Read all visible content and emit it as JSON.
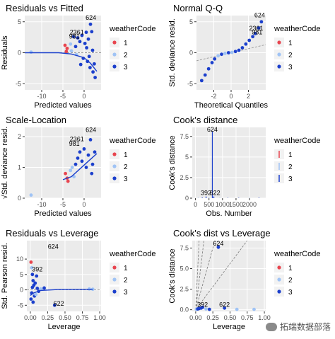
{
  "colors": {
    "1": "#E8454F",
    "2": "#9FC3F5",
    "3": "#1B3FCC",
    "panel": "#EBEBEB",
    "grid": "#FFFFFF",
    "smooth": "#1B3FCC"
  },
  "legend_title": "weatherCode",
  "legend_levels": [
    "1",
    "2",
    "3"
  ],
  "watermark": "拓端数据部落",
  "chart_data": [
    {
      "type": "scatter",
      "title": "Residuals vs Fitted",
      "xlabel": "Predicted values",
      "ylabel": "Residuals",
      "xlim": [
        -14,
        4
      ],
      "ylim": [
        -6,
        6
      ],
      "xticks": [
        -10,
        -5,
        0
      ],
      "yticks": [
        -5,
        0,
        5
      ],
      "refline": {
        "type": "h",
        "value": 0
      },
      "labels": [
        {
          "text": "624",
          "x": 1.6,
          "y": 5.3
        },
        {
          "text": "2361",
          "x": -1.7,
          "y": 3.0
        },
        {
          "text": "981",
          "x": -2.3,
          "y": 2.3
        }
      ],
      "points": [
        {
          "x": -12.5,
          "y": 0.1,
          "g": "2"
        },
        {
          "x": -4.5,
          "y": 1.2,
          "g": "1"
        },
        {
          "x": -4.0,
          "y": 0.7,
          "g": "1"
        },
        {
          "x": -3.2,
          "y": 1.4,
          "g": "2"
        },
        {
          "x": -2.5,
          "y": 2.6,
          "g": "3"
        },
        {
          "x": -1.5,
          "y": 2.4,
          "g": "3"
        },
        {
          "x": -1.0,
          "y": 1.8,
          "g": "3"
        },
        {
          "x": -0.5,
          "y": 2.8,
          "g": "3"
        },
        {
          "x": 0.2,
          "y": 1.5,
          "g": "3"
        },
        {
          "x": 0.6,
          "y": 0.8,
          "g": "3"
        },
        {
          "x": 1.0,
          "y": 2.2,
          "g": "3"
        },
        {
          "x": 1.5,
          "y": 4.6,
          "g": "3"
        },
        {
          "x": 2.0,
          "y": 0.4,
          "g": "3"
        },
        {
          "x": -0.2,
          "y": -0.9,
          "g": "3"
        },
        {
          "x": 0.8,
          "y": -1.4,
          "g": "3"
        },
        {
          "x": 1.4,
          "y": -2.4,
          "g": "3"
        },
        {
          "x": 2.1,
          "y": -3.1,
          "g": "3"
        },
        {
          "x": 2.6,
          "y": -4.0,
          "g": "3"
        },
        {
          "x": -1.8,
          "y": -0.3,
          "g": "2"
        },
        {
          "x": -3.0,
          "y": 0.3,
          "g": "2"
        },
        {
          "x": 1.8,
          "y": 3.4,
          "g": "3"
        },
        {
          "x": -2.0,
          "y": 1.0,
          "g": "3"
        },
        {
          "x": 0.5,
          "y": 3.3,
          "g": "3"
        },
        {
          "x": 1.2,
          "y": -0.6,
          "g": "3"
        },
        {
          "x": 2.4,
          "y": -1.8,
          "g": "3"
        },
        {
          "x": -4.2,
          "y": 0.2,
          "g": "1"
        },
        {
          "x": -0.8,
          "y": -1.9,
          "g": "3"
        }
      ],
      "smooth": [
        {
          "x": -14,
          "y": 0
        },
        {
          "x": -6,
          "y": 0
        },
        {
          "x": -3,
          "y": -0.2
        },
        {
          "x": 0,
          "y": -0.8
        },
        {
          "x": 1.5,
          "y": -1.7
        },
        {
          "x": 3,
          "y": -3.0
        }
      ]
    },
    {
      "type": "scatter",
      "title": "Normal Q-Q",
      "xlabel": "Theoretical Quantiles",
      "ylabel": "Std. deviance resid.",
      "xlim": [
        -4,
        4
      ],
      "ylim": [
        -6,
        6
      ],
      "xticks": [
        -2,
        0,
        2
      ],
      "yticks": [
        -5,
        0,
        5
      ],
      "refline": {
        "type": "line",
        "x1": -4,
        "y1": -1.3,
        "x2": 4,
        "y2": 1.3
      },
      "labels": [
        {
          "text": "624",
          "x": 3.3,
          "y": 5.7
        },
        {
          "text": "2361",
          "x": 2.9,
          "y": 3.6
        },
        {
          "text": "981",
          "x": 3.0,
          "y": 3.0
        }
      ],
      "points": [
        {
          "x": -3.4,
          "y": -4.5,
          "g": "3"
        },
        {
          "x": -3.0,
          "y": -3.6,
          "g": "3"
        },
        {
          "x": -2.6,
          "y": -2.6,
          "g": "3"
        },
        {
          "x": -2.2,
          "y": -1.6,
          "g": "3"
        },
        {
          "x": -1.9,
          "y": -1.0,
          "g": "3"
        },
        {
          "x": -1.5,
          "y": -0.5,
          "g": "2"
        },
        {
          "x": -1.1,
          "y": -0.25,
          "g": "3"
        },
        {
          "x": -0.7,
          "y": -0.1,
          "g": "2"
        },
        {
          "x": -0.3,
          "y": 0.0,
          "g": "3"
        },
        {
          "x": 0.1,
          "y": 0.05,
          "g": "2"
        },
        {
          "x": 0.5,
          "y": 0.2,
          "g": "3"
        },
        {
          "x": 0.9,
          "y": 0.4,
          "g": "3"
        },
        {
          "x": 1.3,
          "y": 0.8,
          "g": "3"
        },
        {
          "x": 1.7,
          "y": 1.4,
          "g": "3"
        },
        {
          "x": 2.1,
          "y": 2.0,
          "g": "3"
        },
        {
          "x": 2.5,
          "y": 2.6,
          "g": "3"
        },
        {
          "x": 2.8,
          "y": 3.1,
          "g": "3"
        },
        {
          "x": 3.2,
          "y": 4.0,
          "g": "3"
        },
        {
          "x": 3.5,
          "y": 5.0,
          "g": "3"
        }
      ]
    },
    {
      "type": "scatter",
      "title": "Scale-Location",
      "xlabel": "Predicted values",
      "ylabel": "√Std. deviance resid.",
      "xlim": [
        -14,
        4
      ],
      "ylim": [
        0,
        2.3
      ],
      "xticks": [
        -10,
        -5,
        0
      ],
      "yticks": [
        0,
        1,
        2
      ],
      "labels": [
        {
          "text": "624",
          "x": 1.6,
          "y": 2.15
        },
        {
          "text": "2361",
          "x": -1.7,
          "y": 1.85
        },
        {
          "text": "981",
          "x": -2.3,
          "y": 1.7
        }
      ],
      "points": [
        {
          "x": -12.5,
          "y": 0.1,
          "g": "2"
        },
        {
          "x": -4.4,
          "y": 0.8,
          "g": "1"
        },
        {
          "x": -4.0,
          "y": 0.65,
          "g": "1"
        },
        {
          "x": -3.8,
          "y": 0.55,
          "g": "1"
        },
        {
          "x": -3.2,
          "y": 0.9,
          "g": "2"
        },
        {
          "x": -2.8,
          "y": 1.0,
          "g": "2"
        },
        {
          "x": -2.4,
          "y": 0.7,
          "g": "2"
        },
        {
          "x": -2.0,
          "y": 1.1,
          "g": "3"
        },
        {
          "x": -1.5,
          "y": 1.3,
          "g": "3"
        },
        {
          "x": -1.0,
          "y": 1.5,
          "g": "3"
        },
        {
          "x": -0.5,
          "y": 1.2,
          "g": "3"
        },
        {
          "x": 0.0,
          "y": 1.6,
          "g": "3"
        },
        {
          "x": 0.5,
          "y": 1.0,
          "g": "3"
        },
        {
          "x": 1.0,
          "y": 1.4,
          "g": "3"
        },
        {
          "x": 1.5,
          "y": 1.9,
          "g": "3"
        },
        {
          "x": 2.0,
          "y": 1.1,
          "g": "3"
        },
        {
          "x": 2.5,
          "y": 1.5,
          "g": "3"
        },
        {
          "x": 1.8,
          "y": 0.8,
          "g": "3"
        }
      ],
      "smooth": [
        {
          "x": -5,
          "y": 0.6
        },
        {
          "x": -3,
          "y": 0.7
        },
        {
          "x": -1,
          "y": 0.95
        },
        {
          "x": 1,
          "y": 1.2
        },
        {
          "x": 3,
          "y": 1.45
        }
      ]
    },
    {
      "type": "bar",
      "title": "Cook's distance",
      "xlabel": "Obs. Number",
      "ylabel": "Cook's distance",
      "xlim": [
        -120,
        2600
      ],
      "ylim": [
        0,
        8.6
      ],
      "xticks": [
        0,
        500,
        1000,
        1500,
        2000
      ],
      "yticks": [
        0,
        2.5,
        5,
        7.5
      ],
      "labels": [
        {
          "text": "624",
          "x": 624,
          "y": 8.1
        },
        {
          "text": "392",
          "x": 392,
          "y": 0.4
        },
        {
          "text": "622",
          "x": 720,
          "y": 0.4
        }
      ],
      "bars": [
        {
          "x": 100,
          "y": 0.05,
          "g": "2"
        },
        {
          "x": 250,
          "y": 0.08,
          "g": "3"
        },
        {
          "x": 392,
          "y": 0.2,
          "g": "3"
        },
        {
          "x": 500,
          "y": 0.1,
          "g": "2"
        },
        {
          "x": 624,
          "y": 8.1,
          "g": "3"
        },
        {
          "x": 680,
          "y": 0.2,
          "g": "3"
        },
        {
          "x": 900,
          "y": 0.05,
          "g": "2"
        },
        {
          "x": 1200,
          "y": 0.04,
          "g": "3"
        },
        {
          "x": 1600,
          "y": 0.04,
          "g": "3"
        },
        {
          "x": 2000,
          "y": 0.05,
          "g": "2"
        },
        {
          "x": 2350,
          "y": 0.06,
          "g": "3"
        }
      ]
    },
    {
      "type": "scatter",
      "title": "Residuals vs Leverage",
      "xlabel": "Leverage",
      "ylabel": "Std. Pearson resid.",
      "xlim": [
        -0.05,
        1.02
      ],
      "ylim": [
        -7,
        16
      ],
      "xticks": [
        0.0,
        0.25,
        0.5,
        0.75,
        1.0
      ],
      "xticklabels": [
        "0.00",
        "0.25",
        "0.50",
        "0.75",
        "1.00"
      ],
      "yticks": [
        -5,
        0,
        5,
        10
      ],
      "yticklabels": [
        "-5",
        "0",
        "5",
        "10"
      ],
      "refline": {
        "type": "h",
        "value": 0
      },
      "labels": [
        {
          "text": "624",
          "x": 0.33,
          "y": 13.4
        },
        {
          "text": "392",
          "x": 0.1,
          "y": 6.0
        },
        {
          "text": "622",
          "x": 0.41,
          "y": -5.2
        }
      ],
      "points": [
        {
          "x": 0.01,
          "y": 9.0,
          "g": "1"
        },
        {
          "x": 0.02,
          "y": 7.2,
          "g": "2"
        },
        {
          "x": 0.03,
          "y": 5.0,
          "g": "3"
        },
        {
          "x": 0.04,
          "y": 3.0,
          "g": "3"
        },
        {
          "x": 0.05,
          "y": 1.5,
          "g": "3"
        },
        {
          "x": 0.02,
          "y": -1.0,
          "g": "3"
        },
        {
          "x": 0.06,
          "y": -2.0,
          "g": "3"
        },
        {
          "x": 0.08,
          "y": -1.5,
          "g": "2"
        },
        {
          "x": 0.1,
          "y": 0.5,
          "g": "3"
        },
        {
          "x": 0.12,
          "y": -0.5,
          "g": "3"
        },
        {
          "x": 0.15,
          "y": 0.3,
          "g": "2"
        },
        {
          "x": 0.03,
          "y": 0.8,
          "g": "3"
        },
        {
          "x": 0.07,
          "y": 2.2,
          "g": "3"
        },
        {
          "x": 0.35,
          "y": -5.0,
          "g": "3"
        },
        {
          "x": 0.85,
          "y": 0.3,
          "g": "2"
        },
        {
          "x": 0.9,
          "y": 0.2,
          "g": "2"
        },
        {
          "x": 0.2,
          "y": 0.6,
          "g": "3"
        },
        {
          "x": 0.01,
          "y": -3.0,
          "g": "3"
        },
        {
          "x": 0.04,
          "y": -4.0,
          "g": "3"
        },
        {
          "x": 0.09,
          "y": 4.5,
          "g": "3"
        }
      ],
      "smooth": [
        {
          "x": 0.0,
          "y": -1.8
        },
        {
          "x": 0.05,
          "y": -1.0
        },
        {
          "x": 0.15,
          "y": -0.2
        },
        {
          "x": 0.4,
          "y": 0.1
        },
        {
          "x": 0.9,
          "y": 0.2
        }
      ]
    },
    {
      "type": "scatter",
      "title": "Cook's dist vs Leverage",
      "xlabel": "Leverage",
      "ylabel": "Cook's distance",
      "xlim": [
        -0.05,
        1.02
      ],
      "ylim": [
        -0.2,
        8.4
      ],
      "xticks": [
        0.0,
        0.25,
        0.5,
        0.75,
        1.0
      ],
      "xticklabels": [
        "0.00",
        "0.25",
        "0.50",
        "0.75",
        "1.00"
      ],
      "yticks": [
        0,
        2.5,
        5,
        7.5
      ],
      "yticklabels": [
        "0.0",
        "2.5",
        "5.0",
        "7.5"
      ],
      "labels": [
        {
          "text": "624",
          "x": 0.33,
          "y": 7.8
        },
        {
          "text": "392",
          "x": 0.1,
          "y": 0.35
        },
        {
          "text": "622",
          "x": 0.42,
          "y": 0.35
        }
      ],
      "points": [
        {
          "x": 0.01,
          "y": 0.05,
          "g": "2"
        },
        {
          "x": 0.03,
          "y": 0.1,
          "g": "3"
        },
        {
          "x": 0.05,
          "y": 0.15,
          "g": "3"
        },
        {
          "x": 0.08,
          "y": 0.2,
          "g": "3"
        },
        {
          "x": 0.1,
          "y": 0.3,
          "g": "3"
        },
        {
          "x": 0.15,
          "y": 0.1,
          "g": "2"
        },
        {
          "x": 0.2,
          "y": 0.05,
          "g": "3"
        },
        {
          "x": 0.33,
          "y": 7.6,
          "g": "3"
        },
        {
          "x": 0.42,
          "y": 0.2,
          "g": "3"
        },
        {
          "x": 0.6,
          "y": 0.05,
          "g": "2"
        },
        {
          "x": 0.85,
          "y": 0.05,
          "g": "2"
        }
      ],
      "contours": [
        {
          "x1": 0.0,
          "y1": 0.0,
          "x2": 0.05,
          "y2": 8.4
        },
        {
          "x1": 0.0,
          "y1": 0.0,
          "x2": 0.12,
          "y2": 8.4
        },
        {
          "x1": 0.0,
          "y1": 0.0,
          "x2": 0.28,
          "y2": 8.4
        },
        {
          "x1": 0.0,
          "y1": 0.0,
          "x2": 0.75,
          "y2": 8.4
        }
      ]
    }
  ]
}
